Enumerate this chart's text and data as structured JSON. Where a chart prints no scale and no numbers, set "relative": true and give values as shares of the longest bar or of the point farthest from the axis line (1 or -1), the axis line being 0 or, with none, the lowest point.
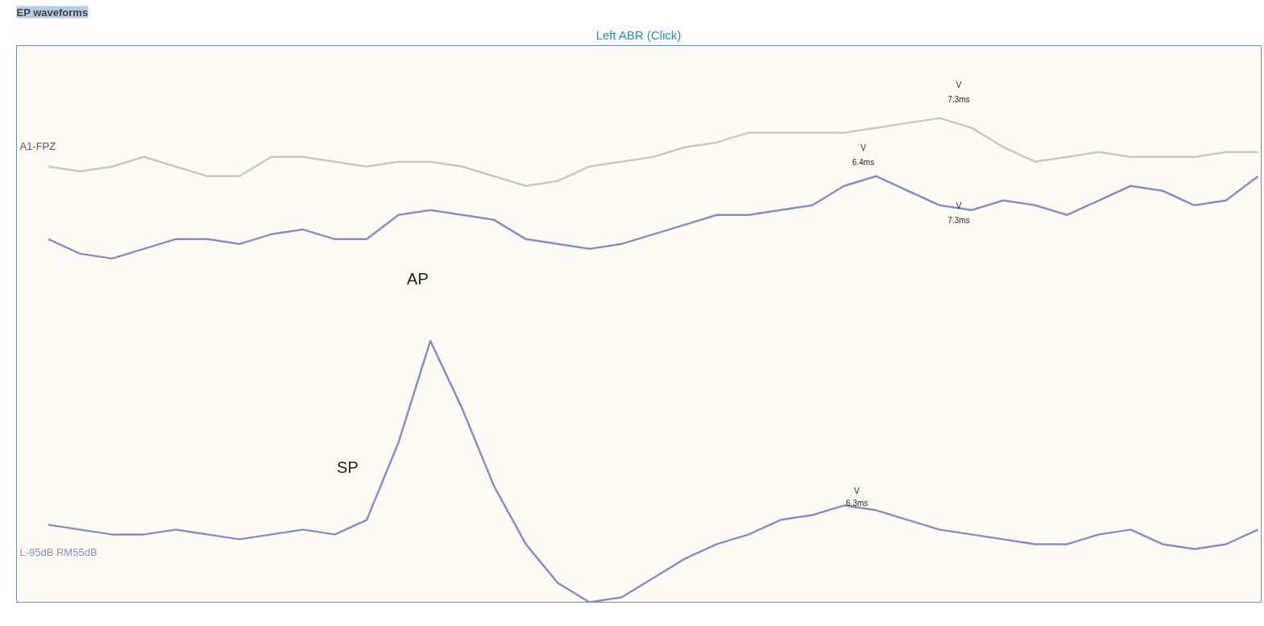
{
  "chart_data": {
    "type": "line",
    "relative": true,
    "title": "EP waveforms",
    "subtitle": "Left ABR (Click)",
    "categories": [
      null,
      null,
      null,
      null,
      null,
      null,
      null,
      null,
      null,
      null,
      null,
      null,
      null,
      null,
      null,
      null,
      null,
      null,
      null,
      null,
      null,
      null,
      null,
      null,
      null,
      null,
      null,
      null,
      null,
      null,
      null,
      null,
      null,
      null,
      null,
      null,
      null,
      null,
      null
    ],
    "series": [
      {
        "name": "A1-FPZ",
        "color": "#c8c8c8",
        "values": [
          0.9,
          0.89,
          0.9,
          0.92,
          0.9,
          0.88,
          0.88,
          0.92,
          0.92,
          0.91,
          0.9,
          0.91,
          0.91,
          0.9,
          0.88,
          0.86,
          0.87,
          0.9,
          0.91,
          0.92,
          0.94,
          0.95,
          0.97,
          0.97,
          0.97,
          0.97,
          0.98,
          0.99,
          1,
          0.98,
          0.94,
          0.91,
          0.92,
          0.93,
          0.92,
          0.92,
          0.92,
          0.93,
          0.93
        ]
      },
      {
        "color": "#8a8cc8",
        "values": [
          0.75,
          0.72,
          0.71,
          0.73,
          0.75,
          0.75,
          0.74,
          0.76,
          0.77,
          0.75,
          0.75,
          0.8,
          0.81,
          0.8,
          0.79,
          0.75,
          0.74,
          0.73,
          0.74,
          0.76,
          0.78,
          0.8,
          0.8,
          0.81,
          0.82,
          0.86,
          0.88,
          0.85,
          0.82,
          0.81,
          0.83,
          0.82,
          0.8,
          0.83,
          0.86,
          0.85,
          0.82,
          0.83,
          0.88
        ]
      },
      {
        "name": "L-95dB RM55dB",
        "color": "#8a8cc8",
        "values": [
          0.16,
          0.15,
          0.14,
          0.14,
          0.15,
          0.14,
          0.13,
          0.14,
          0.15,
          0.14,
          0.17,
          0.33,
          0.54,
          0.4,
          0.24,
          0.12,
          0.04,
          0,
          0.01,
          0.05,
          0.09,
          0.12,
          0.14,
          0.17,
          0.18,
          0.2,
          0.19,
          0.17,
          0.15,
          0.14,
          0.13,
          0.12,
          0.12,
          0.14,
          0.15,
          0.12,
          0.11,
          0.12,
          0.15
        ]
      }
    ],
    "annotations": [
      "AP",
      "SP",
      "V",
      "7.3ms",
      "V",
      "6.4ms",
      "V",
      "7.3ms",
      "V",
      "6.3ms"
    ]
  }
}
